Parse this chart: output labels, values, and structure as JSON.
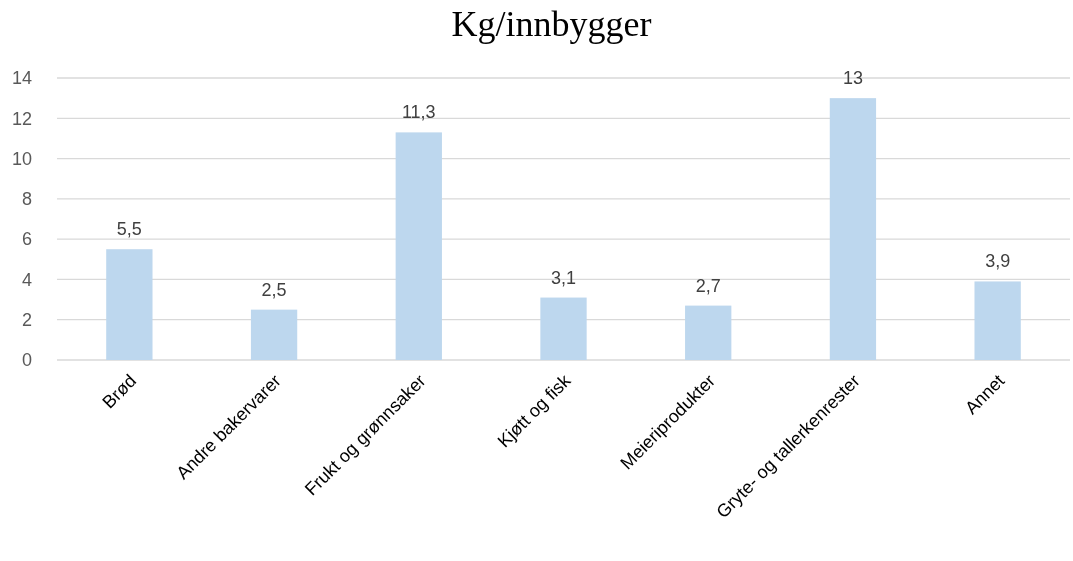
{
  "chart_data": {
    "type": "bar",
    "title": "Kg/innbygger",
    "categories": [
      "Brød",
      "Andre bakervarer",
      "Frukt og grønnsaker",
      "Kjøtt og fisk",
      "Meieriprodukter",
      "Gryte- og tallerkenrester",
      "Annet"
    ],
    "values": [
      5.5,
      2.5,
      11.3,
      3.1,
      2.7,
      13,
      3.9
    ],
    "value_labels": [
      "5,5",
      "2,5",
      "11,3",
      "3,1",
      "2,7",
      "13",
      "3,9"
    ],
    "color": "#bdd7ee",
    "ylim": [
      0,
      14
    ],
    "yticks": [
      0,
      2,
      4,
      6,
      8,
      10,
      12,
      14
    ],
    "grid": "y"
  }
}
